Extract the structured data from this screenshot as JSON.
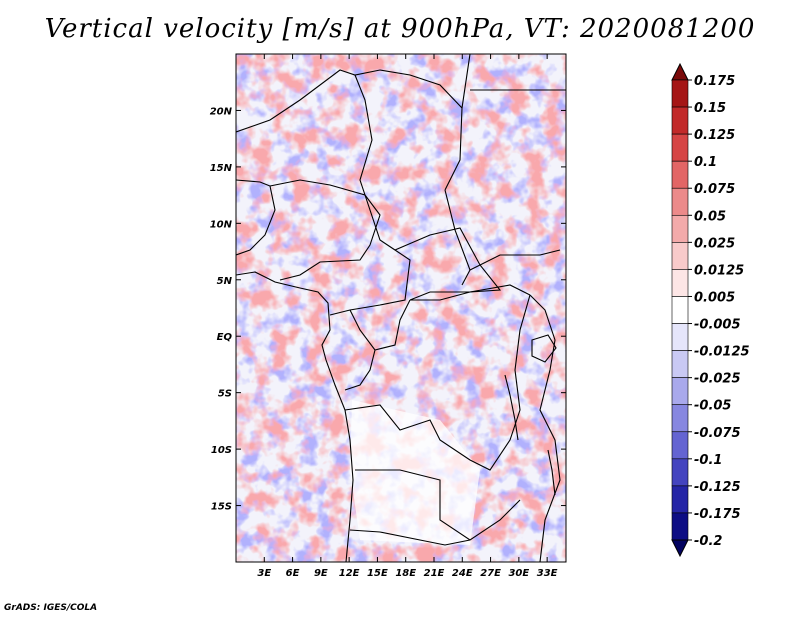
{
  "title": "Vertical velocity [m/s] at 900hPa, VT: 2020081200",
  "credit": "GrADS: IGES/COLA",
  "chart_data": {
    "type": "heatmap",
    "variable": "vertical velocity",
    "units": "m/s",
    "level": "900hPa",
    "valid_time": "2020081200",
    "lon_range": [
      0,
      35
    ],
    "lat_range": [
      -20,
      25
    ],
    "x_ticks": [
      "3E",
      "6E",
      "9E",
      "12E",
      "15E",
      "18E",
      "21E",
      "24E",
      "27E",
      "30E",
      "33E"
    ],
    "x_tick_values": [
      3,
      6,
      9,
      12,
      15,
      18,
      21,
      24,
      27,
      30,
      33
    ],
    "y_ticks": [
      "20N",
      "15N",
      "10N",
      "5N",
      "EQ",
      "5S",
      "10S",
      "15S"
    ],
    "y_tick_values": [
      20,
      15,
      10,
      5,
      0,
      -5,
      -10,
      -15
    ],
    "colorbar": {
      "labels": [
        "0.175",
        "0.15",
        "0.125",
        "0.1",
        "0.075",
        "0.05",
        "0.025",
        "0.0125",
        "0.005",
        "-0.005",
        "-0.0125",
        "-0.025",
        "-0.05",
        "-0.075",
        "-0.1",
        "-0.125",
        "-0.175",
        "-0.2"
      ],
      "colors": [
        "#7a0a0a",
        "#a51616",
        "#c22a2a",
        "#d64545",
        "#e26666",
        "#ec8a8a",
        "#f3aaaa",
        "#f8caca",
        "#fde6e6",
        "#ffffff",
        "#e6e6fb",
        "#c9c9f4",
        "#a9a9ec",
        "#8787e0",
        "#6464d2",
        "#4444bf",
        "#2525a6",
        "#0d0d84",
        "#030360"
      ]
    }
  }
}
